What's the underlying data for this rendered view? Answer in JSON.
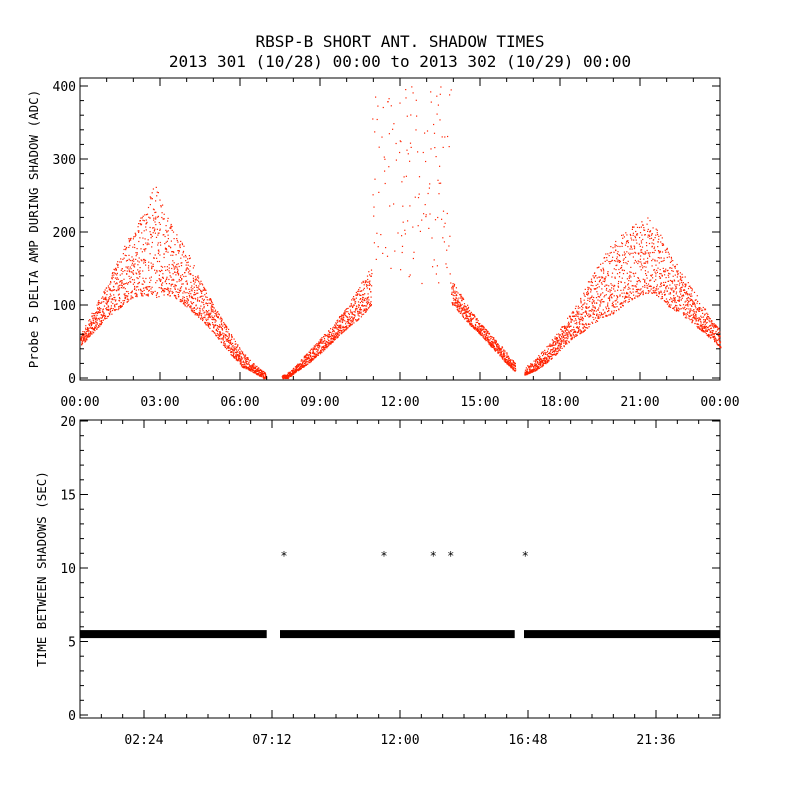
{
  "figure": {
    "title_line1": "RBSP-B SHORT ANT. SHADOW TIMES",
    "title_line2": "2013 301 (10/28) 00:00 to 2013 302 (10/29) 00:00"
  },
  "colors": {
    "amp": "#ff2200",
    "gap": "#000000",
    "axes": "#000000"
  },
  "chart_data": [
    {
      "type": "scatter",
      "ylabel": "Probe 5 DELTA AMP DURING SHADOW (ADC)",
      "xlabel": "",
      "xlim": [
        "2013-10-28 00:00",
        "2013-10-29 00:00"
      ],
      "xlim_hours": [
        0,
        24
      ],
      "ylim": [
        0,
        400
      ],
      "x_tick_labels": [
        "00:00",
        "03:00",
        "06:00",
        "09:00",
        "12:00",
        "15:00",
        "18:00",
        "21:00",
        "00:00"
      ],
      "x_tick_hours": [
        0,
        3,
        6,
        9,
        12,
        15,
        18,
        21,
        24
      ],
      "y_ticks": [
        0,
        100,
        200,
        300,
        400
      ],
      "series": [
        {
          "color": "#ff2200",
          "x_hours": [
            0,
            0.5,
            1,
            1.5,
            2,
            2.5,
            2.8,
            3,
            3.5,
            4,
            4.5,
            5,
            5.5,
            6,
            6.5,
            7,
            7.7,
            8,
            8.5,
            9,
            9.5,
            10,
            10.5,
            11,
            11.5,
            12,
            12.5,
            13,
            13.5,
            14,
            14.5,
            15,
            15.5,
            16,
            16.5,
            17,
            17.5,
            18,
            18.5,
            19,
            19.5,
            20,
            20.5,
            21,
            21.3,
            21.5,
            22,
            22.5,
            23,
            23.5,
            24
          ],
          "center": [
            50,
            75,
            100,
            125,
            145,
            160,
            165,
            160,
            145,
            125,
            100,
            75,
            50,
            25,
            12,
            0,
            0,
            10,
            25,
            42,
            60,
            80,
            100,
            125,
            null,
            null,
            null,
            null,
            130,
            110,
            85,
            65,
            45,
            25,
            5,
            15,
            30,
            50,
            70,
            90,
            110,
            125,
            140,
            150,
            155,
            150,
            130,
            110,
            90,
            70,
            50
          ],
          "upper": [
            60,
            95,
            130,
            175,
            205,
            245,
            265,
            245,
            205,
            175,
            135,
            100,
            70,
            40,
            20,
            5,
            5,
            15,
            35,
            55,
            75,
            100,
            130,
            160,
            400,
            400,
            400,
            380,
            160,
            130,
            100,
            75,
            55,
            35,
            10,
            25,
            45,
            70,
            95,
            130,
            160,
            190,
            205,
            215,
            225,
            210,
            185,
            150,
            120,
            90,
            65
          ]
        }
      ],
      "burst_range_hours": [
        10.9,
        13.9
      ],
      "burst_range_adc": [
        130,
        400
      ],
      "note": "dense red dot cloud; envelope estimated"
    },
    {
      "type": "scatter",
      "ylabel": "TIME BETWEEN SHADOWS (SEC)",
      "xlabel": "",
      "xlim": [
        "2013-10-28 00:00",
        "2013-10-29 00:00"
      ],
      "xlim_hours": [
        0,
        24
      ],
      "ylim": [
        0,
        20
      ],
      "x_tick_labels": [
        "02:24",
        "07:12",
        "12:00",
        "16:48",
        "21:36"
      ],
      "x_tick_hours": [
        2.4,
        7.2,
        12.0,
        16.8,
        21.6
      ],
      "y_ticks": [
        0,
        5,
        10,
        15,
        20
      ],
      "series": [
        {
          "color": "#000000",
          "marker": "*",
          "baseline_value": 5.5,
          "baseline_segments_hours": [
            [
              0,
              7.0
            ],
            [
              7.5,
              16.3
            ],
            [
              16.65,
              24
            ]
          ],
          "outliers": [
            {
              "x_hours": 7.65,
              "y": 10.9
            },
            {
              "x_hours": 11.4,
              "y": 10.9
            },
            {
              "x_hours": 13.25,
              "y": 10.9
            },
            {
              "x_hours": 13.9,
              "y": 10.9
            },
            {
              "x_hours": 16.7,
              "y": 10.9
            }
          ]
        }
      ]
    }
  ]
}
